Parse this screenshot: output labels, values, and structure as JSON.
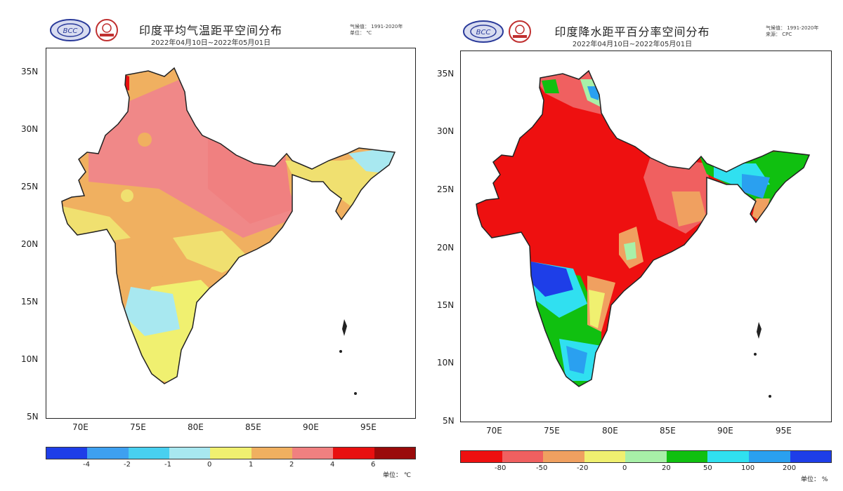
{
  "panels": [
    {
      "title": "印度平均气温距平空间分布",
      "subtitle": "2022年04月10日~2022年05月01日",
      "meta_line1": "气候值： 1991-2020年",
      "meta_line2": "单位： ℃",
      "y_ticks": [
        "35N",
        "30N",
        "25N",
        "20N",
        "15N",
        "10N",
        "5N"
      ],
      "x_ticks": [
        "70E",
        "75E",
        "80E",
        "85E",
        "90E",
        "95E"
      ],
      "colorbar": {
        "colors": [
          "#1e3ee8",
          "#3ea0f0",
          "#48d0f0",
          "#a8e8f0",
          "#f0f070",
          "#f0b060",
          "#f08080",
          "#e81010",
          "#9a0a0a"
        ],
        "labels": [
          "-4",
          "-2",
          "-1",
          "0",
          "1",
          "2",
          "4",
          "6"
        ],
        "unit": "单位： ℃"
      }
    },
    {
      "title": "印度降水距平百分率空间分布",
      "subtitle": "2022年04月10日~2022年05月01日",
      "meta_line1": "气候值： 1991-2020年",
      "meta_line2": "来源： CPC",
      "y_ticks": [
        "35N",
        "30N",
        "25N",
        "20N",
        "15N",
        "10N",
        "5N"
      ],
      "x_ticks": [
        "70E",
        "75E",
        "80E",
        "85E",
        "90E",
        "95E"
      ],
      "colorbar": {
        "colors": [
          "#ee1010",
          "#f06060",
          "#f0a060",
          "#f0f070",
          "#a8f0a8",
          "#10c010",
          "#30e0f0",
          "#2aa0f0",
          "#1e3ee8"
        ],
        "labels": [
          "-80",
          "-50",
          "-20",
          "0",
          "20",
          "50",
          "100",
          "200"
        ],
        "unit": "单位： %"
      }
    }
  ]
}
